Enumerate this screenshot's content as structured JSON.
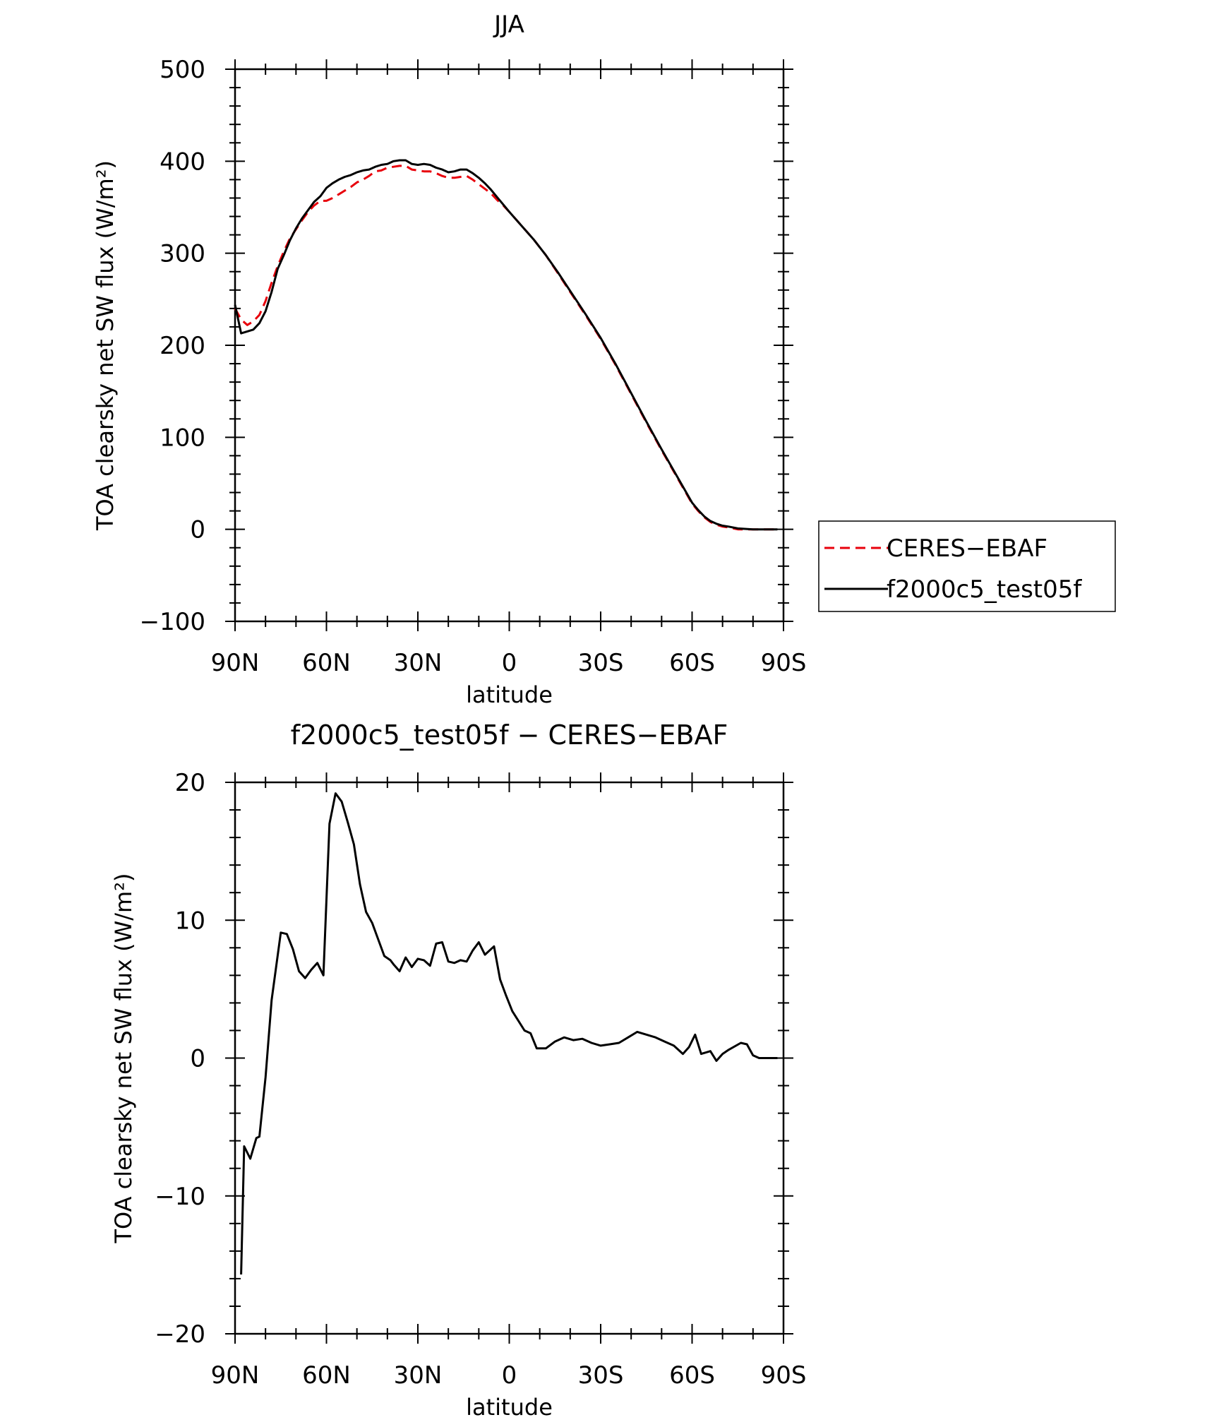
{
  "chart_data": [
    {
      "type": "line",
      "title": "JJA",
      "xlabel": "latitude",
      "ylabel": "TOA clearsky net SW flux (W/m²)",
      "xlim": [
        90,
        -90
      ],
      "ylim": [
        -100,
        500
      ],
      "yticks": [
        -100,
        0,
        100,
        200,
        300,
        400,
        500
      ],
      "xticks": [
        90,
        60,
        30,
        0,
        -30,
        -60,
        -90
      ],
      "xtick_labels": [
        "90N",
        "60N",
        "30N",
        "0",
        "30S",
        "60S",
        "90S"
      ],
      "legend_position": "right",
      "series": [
        {
          "name": "CERES−EBAF",
          "color": "#e8000b",
          "dash": "dashed",
          "x": [
            90,
            88,
            86,
            84,
            82,
            80,
            78,
            76,
            74,
            72,
            70,
            68,
            66,
            64,
            62,
            60,
            58,
            56,
            54,
            52,
            50,
            48,
            46,
            44,
            42,
            40,
            38,
            36,
            34,
            32,
            30,
            28,
            26,
            24,
            22,
            20,
            18,
            16,
            14,
            12,
            10,
            8,
            6,
            4,
            2,
            0,
            -4,
            -8,
            -12,
            -16,
            -20,
            -25,
            -30,
            -35,
            -40,
            -45,
            -50,
            -55,
            -60,
            -62,
            -64,
            -66,
            -68,
            -70,
            -72,
            -75,
            -80,
            -85,
            -88
          ],
          "y": [
            240,
            228,
            222,
            226,
            233,
            248,
            268,
            286,
            302,
            316,
            326,
            336,
            345,
            352,
            357,
            357,
            360,
            364,
            368,
            372,
            377,
            380,
            384,
            389,
            390,
            393,
            394,
            395,
            395,
            391,
            390,
            389,
            389,
            387,
            384,
            382,
            382,
            383,
            384,
            380,
            375,
            370,
            365,
            358,
            352,
            345,
            330,
            315,
            298,
            278,
            258,
            233,
            207,
            178,
            147,
            116,
            86,
            57,
            28,
            20,
            13,
            8,
            5,
            3,
            2,
            0,
            0,
            0,
            0
          ]
        },
        {
          "name": "f2000c5_test05f",
          "color": "#000000",
          "dash": "solid",
          "x": [
            90,
            88,
            86,
            84,
            82,
            80,
            78,
            76,
            74,
            72,
            70,
            68,
            66,
            64,
            62,
            60,
            58,
            56,
            54,
            52,
            50,
            48,
            46,
            44,
            42,
            40,
            38,
            36,
            34,
            32,
            30,
            28,
            26,
            24,
            22,
            20,
            18,
            16,
            14,
            12,
            10,
            8,
            6,
            4,
            2,
            0,
            -4,
            -8,
            -12,
            -16,
            -20,
            -25,
            -30,
            -35,
            -40,
            -45,
            -50,
            -55,
            -60,
            -62,
            -64,
            -66,
            -68,
            -70,
            -72,
            -75,
            -80,
            -85,
            -88
          ],
          "y": [
            244,
            213,
            215,
            217,
            224,
            237,
            258,
            283,
            298,
            314,
            327,
            338,
            347,
            356,
            362,
            371,
            376,
            380,
            383,
            385,
            388,
            390,
            391,
            394,
            396,
            397,
            400,
            401,
            401,
            397,
            396,
            397,
            396,
            393,
            391,
            388,
            389,
            391,
            391,
            387,
            382,
            376,
            369,
            361,
            353,
            345,
            330,
            315,
            298,
            279,
            259,
            234,
            208,
            179,
            148,
            117,
            87,
            58,
            29,
            21,
            14,
            9,
            6,
            4,
            3,
            1,
            0,
            0,
            0
          ]
        }
      ]
    },
    {
      "type": "line",
      "title": "f2000c5_test05f − CERES−EBAF",
      "xlabel": "latitude",
      "ylabel": "TOA clearsky net SW flux (W/m²)",
      "xlim": [
        90,
        -90
      ],
      "ylim": [
        -20,
        20
      ],
      "yticks": [
        -20,
        -10,
        0,
        10,
        20
      ],
      "xticks": [
        90,
        60,
        30,
        0,
        -30,
        -60,
        -90
      ],
      "xtick_labels": [
        "90N",
        "60N",
        "30N",
        "0",
        "30S",
        "60S",
        "90S"
      ],
      "series": [
        {
          "color": "#000000",
          "dash": "solid",
          "x": [
            88,
            87,
            85,
            83,
            82,
            80,
            78,
            75,
            73,
            71,
            69,
            67,
            65,
            63,
            61,
            59,
            57,
            55,
            53,
            51,
            49,
            47,
            45,
            43,
            41,
            39,
            38,
            36,
            34,
            32,
            30,
            28,
            26,
            24,
            22,
            20,
            18,
            16,
            14,
            12,
            10,
            8,
            5,
            3,
            1,
            -1,
            -3,
            -5,
            -7,
            -9,
            -12,
            -15,
            -18,
            -21,
            -24,
            -27,
            -30,
            -33,
            -36,
            -39,
            -42,
            -45,
            -48,
            -51,
            -54,
            -57,
            -59,
            -61,
            -63,
            -66,
            -68,
            -70,
            -72,
            -76,
            -78,
            -80,
            -82,
            -88
          ],
          "y": [
            -15.7,
            -6.4,
            -7.3,
            -5.8,
            -5.7,
            -1.4,
            4.2,
            9.1,
            9.0,
            7.9,
            6.3,
            5.8,
            6.4,
            6.9,
            6.0,
            17.0,
            19.2,
            18.6,
            17.1,
            15.5,
            12.6,
            10.6,
            9.8,
            8.6,
            7.4,
            7.1,
            6.8,
            6.3,
            7.3,
            6.6,
            7.2,
            7.1,
            6.7,
            8.3,
            8.4,
            7.0,
            6.9,
            7.1,
            7.0,
            7.8,
            8.4,
            7.5,
            8.1,
            5.7,
            4.5,
            3.4,
            2.7,
            2.0,
            1.8,
            0.7,
            0.7,
            1.2,
            1.5,
            1.3,
            1.4,
            1.1,
            0.9,
            1.0,
            1.1,
            1.5,
            1.9,
            1.7,
            1.5,
            1.2,
            0.9,
            0.3,
            0.8,
            1.7,
            0.3,
            0.5,
            -0.2,
            0.3,
            0.6,
            1.1,
            1.0,
            0.2,
            0.0,
            0.0
          ]
        }
      ]
    }
  ]
}
